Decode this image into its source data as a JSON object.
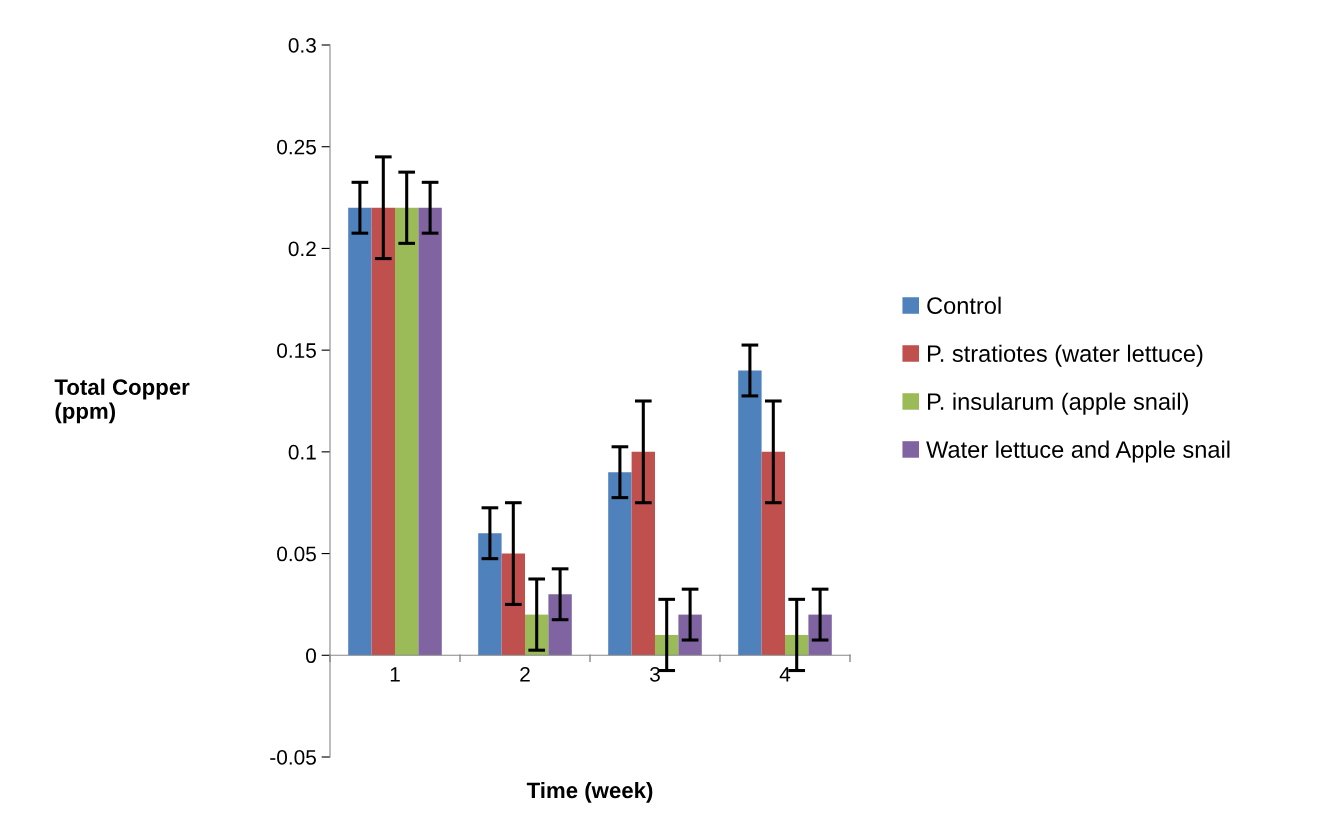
{
  "chart_data": {
    "type": "bar",
    "xlabel": "Time (week)",
    "ylabel": "Total Copper\n(ppm)",
    "categories": [
      "1",
      "2",
      "3",
      "4"
    ],
    "series": [
      {
        "name": "Control",
        "color": "#4f81bd",
        "values": [
          0.22,
          0.06,
          0.09,
          0.14
        ],
        "errors": [
          0.0125,
          0.0125,
          0.0125,
          0.0125
        ]
      },
      {
        "name": "P. stratiotes (water lettuce)",
        "color": "#c0504d",
        "values": [
          0.22,
          0.05,
          0.1,
          0.1
        ],
        "errors": [
          0.025,
          0.025,
          0.025,
          0.025
        ]
      },
      {
        "name": "P. insularum (apple snail)",
        "color": "#9bbb59",
        "values": [
          0.22,
          0.02,
          0.01,
          0.01
        ],
        "errors": [
          0.0175,
          0.0175,
          0.0175,
          0.0175
        ]
      },
      {
        "name": "Water lettuce and Apple snail",
        "color": "#8064a2",
        "values": [
          0.22,
          0.03,
          0.02,
          0.02
        ],
        "errors": [
          0.0125,
          0.0125,
          0.0125,
          0.0125
        ]
      }
    ],
    "ylim": [
      -0.05,
      0.3
    ],
    "yticks": [
      -0.05,
      0,
      0.05,
      0.1,
      0.15,
      0.2,
      0.25,
      0.3
    ],
    "grid": false,
    "legend": "right"
  }
}
